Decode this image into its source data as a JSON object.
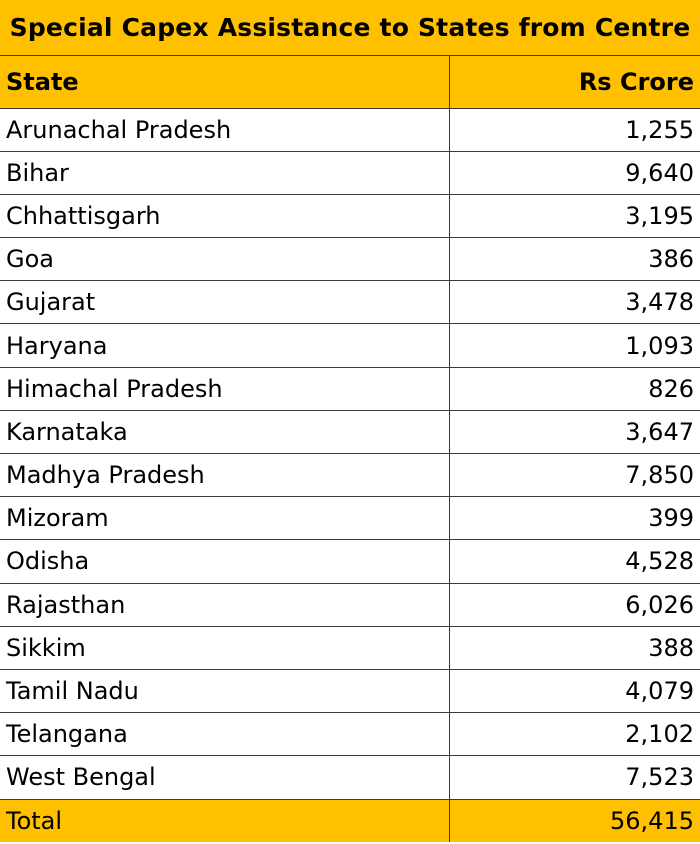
{
  "title": "Special Capex Assistance to States from Centre",
  "headers": {
    "state": "State",
    "value": "Rs Crore"
  },
  "rows": [
    {
      "state": "Arunachal Pradesh",
      "value": "1,255"
    },
    {
      "state": "Bihar",
      "value": "9,640"
    },
    {
      "state": "Chhattisgarh",
      "value": "3,195"
    },
    {
      "state": "Goa",
      "value": "386"
    },
    {
      "state": "Gujarat",
      "value": "3,478"
    },
    {
      "state": "Haryana",
      "value": "1,093"
    },
    {
      "state": "Himachal Pradesh",
      "value": "826"
    },
    {
      "state": "Karnataka",
      "value": "3,647"
    },
    {
      "state": "Madhya Pradesh",
      "value": "7,850"
    },
    {
      "state": "Mizoram",
      "value": "399"
    },
    {
      "state": "Odisha",
      "value": "4,528"
    },
    {
      "state": "Rajasthan",
      "value": "6,026"
    },
    {
      "state": "Sikkim",
      "value": "388"
    },
    {
      "state": "Tamil Nadu",
      "value": "4,079"
    },
    {
      "state": "Telangana",
      "value": "2,102"
    },
    {
      "state": "West Bengal",
      "value": "7,523"
    }
  ],
  "total": {
    "label": "Total",
    "value": "56,415"
  },
  "colors": {
    "header_fill": "#FFC000",
    "border": "#3a3a3a"
  }
}
